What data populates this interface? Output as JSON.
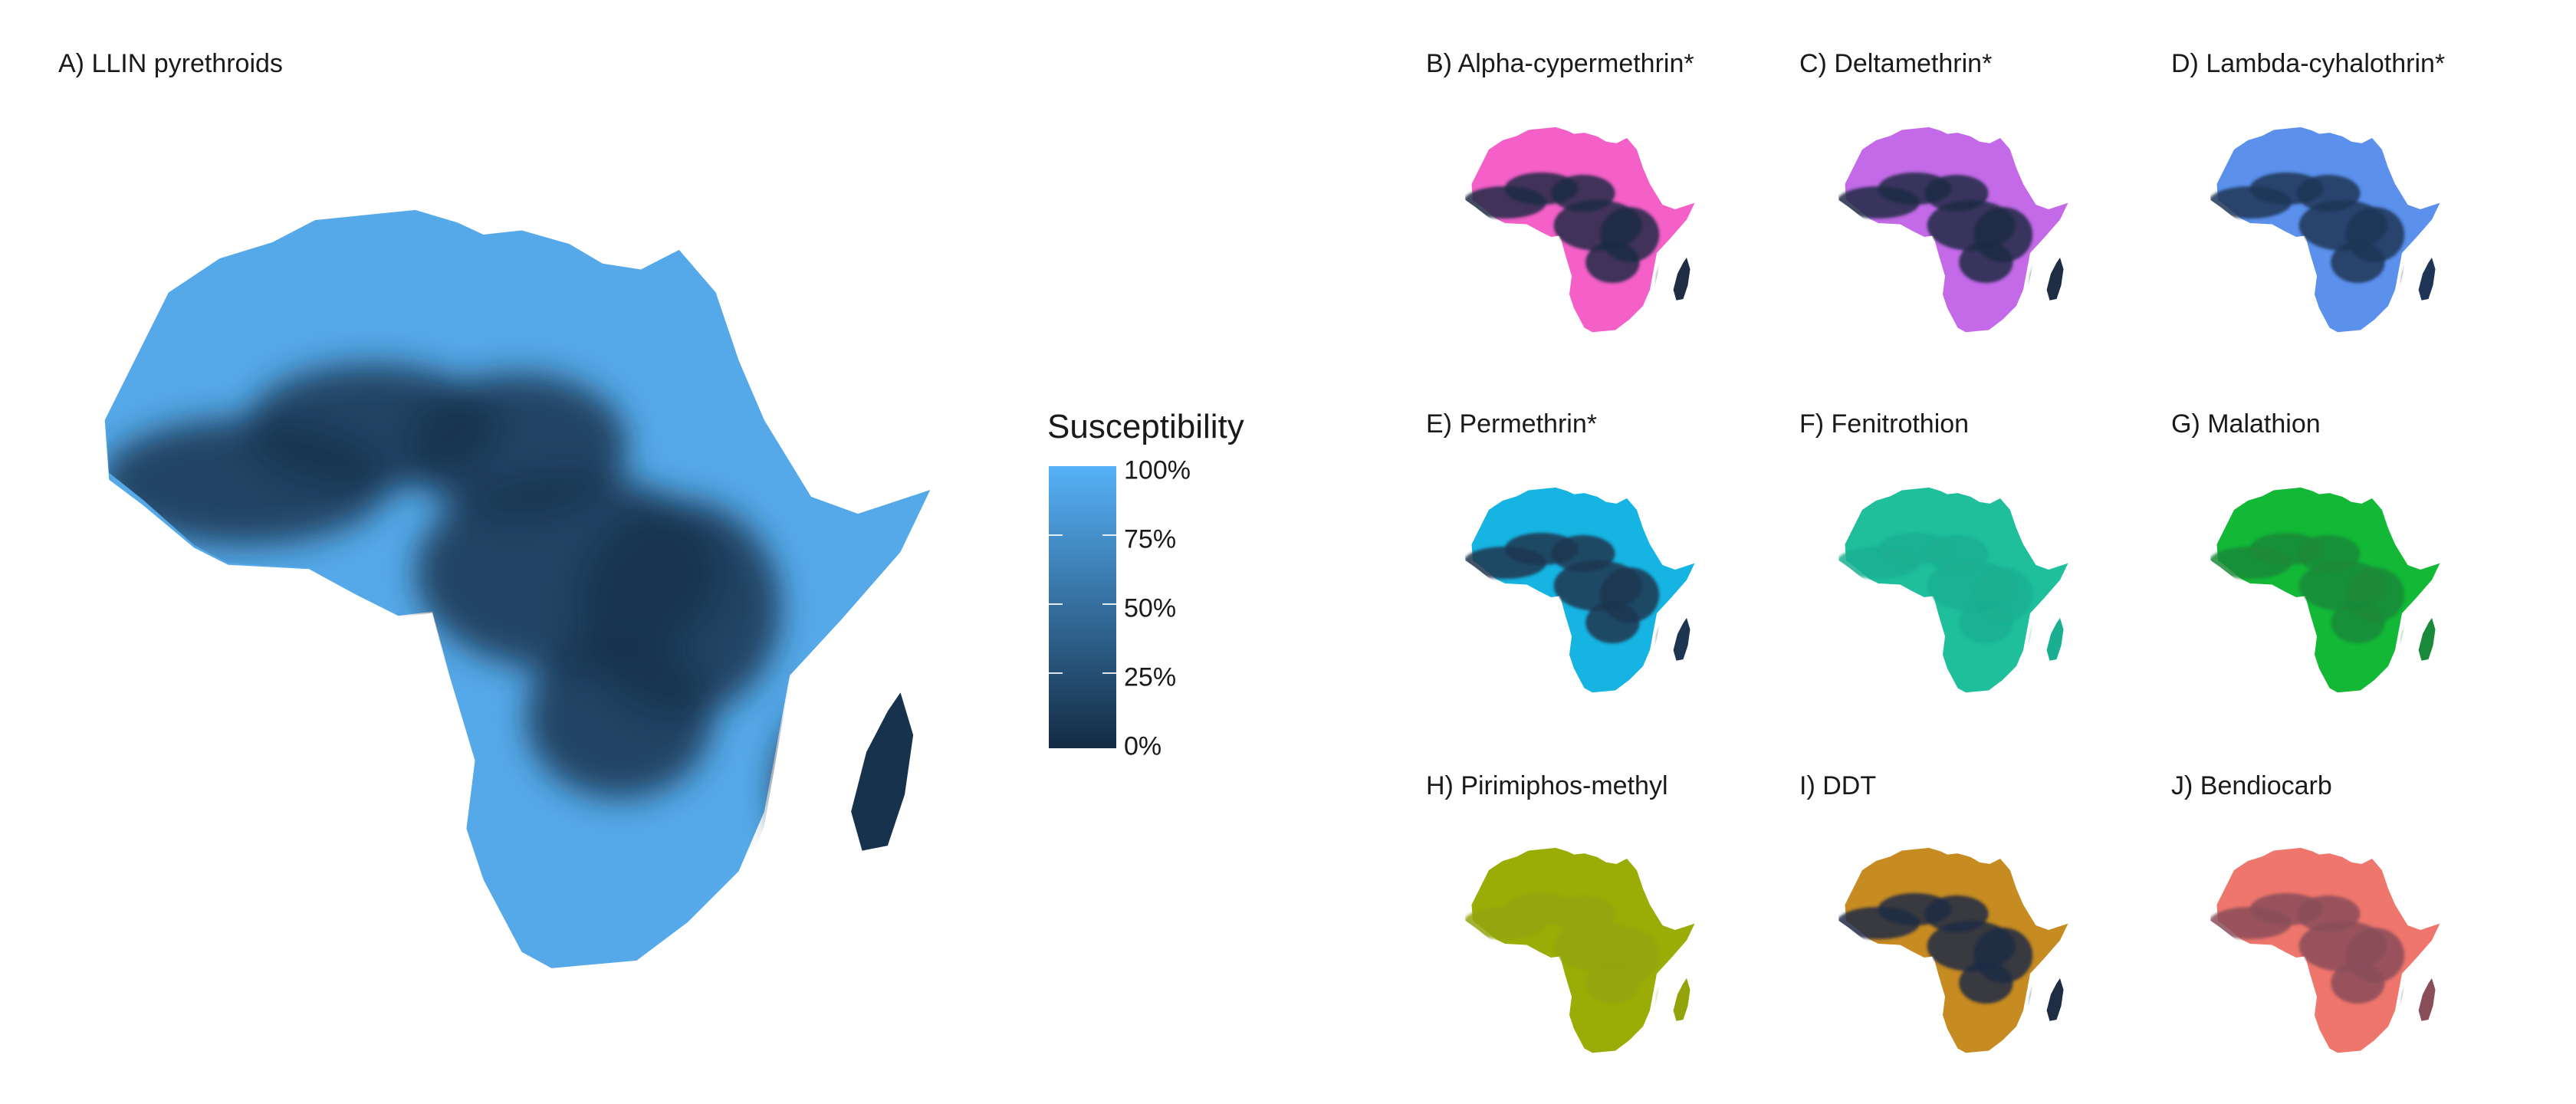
{
  "legend": {
    "title": "Susceptibility",
    "labels": [
      "100%",
      "75%",
      "50%",
      "25%",
      "0%"
    ],
    "color_high": "#56b1f7",
    "color_low": "#132b43"
  },
  "panels": [
    {
      "id": "A",
      "title": "A) LLIN pyrethroids",
      "light": "#56a9e8",
      "dark": "#17324d"
    },
    {
      "id": "B",
      "title": "B) Alpha-cypermethrin*",
      "light": "#f45fc8",
      "dark": "#1e2c44"
    },
    {
      "id": "C",
      "title": "C) Deltamethrin*",
      "light": "#c46ae8",
      "dark": "#1e2c44"
    },
    {
      "id": "D",
      "title": "D) Lambda-cyhalothrin*",
      "light": "#5b90ec",
      "dark": "#1e3556"
    },
    {
      "id": "E",
      "title": "E) Permethrin*",
      "light": "#16b4e2",
      "dark": "#1c3550"
    },
    {
      "id": "F",
      "title": "F) Fenitrothion",
      "light": "#1fbf9c",
      "dark": "#1aaf90"
    },
    {
      "id": "G",
      "title": "G) Malathion",
      "light": "#13b837",
      "dark": "#1a8a3a"
    },
    {
      "id": "H",
      "title": "H) Pirimiphos-methyl",
      "light": "#9aad07",
      "dark": "#93a40a"
    },
    {
      "id": "I",
      "title": "I) DDT",
      "light": "#c68b21",
      "dark": "#1e2c44"
    },
    {
      "id": "J",
      "title": "J) Bendiocarb",
      "light": "#ef766c",
      "dark": "#8a4e5a"
    }
  ]
}
